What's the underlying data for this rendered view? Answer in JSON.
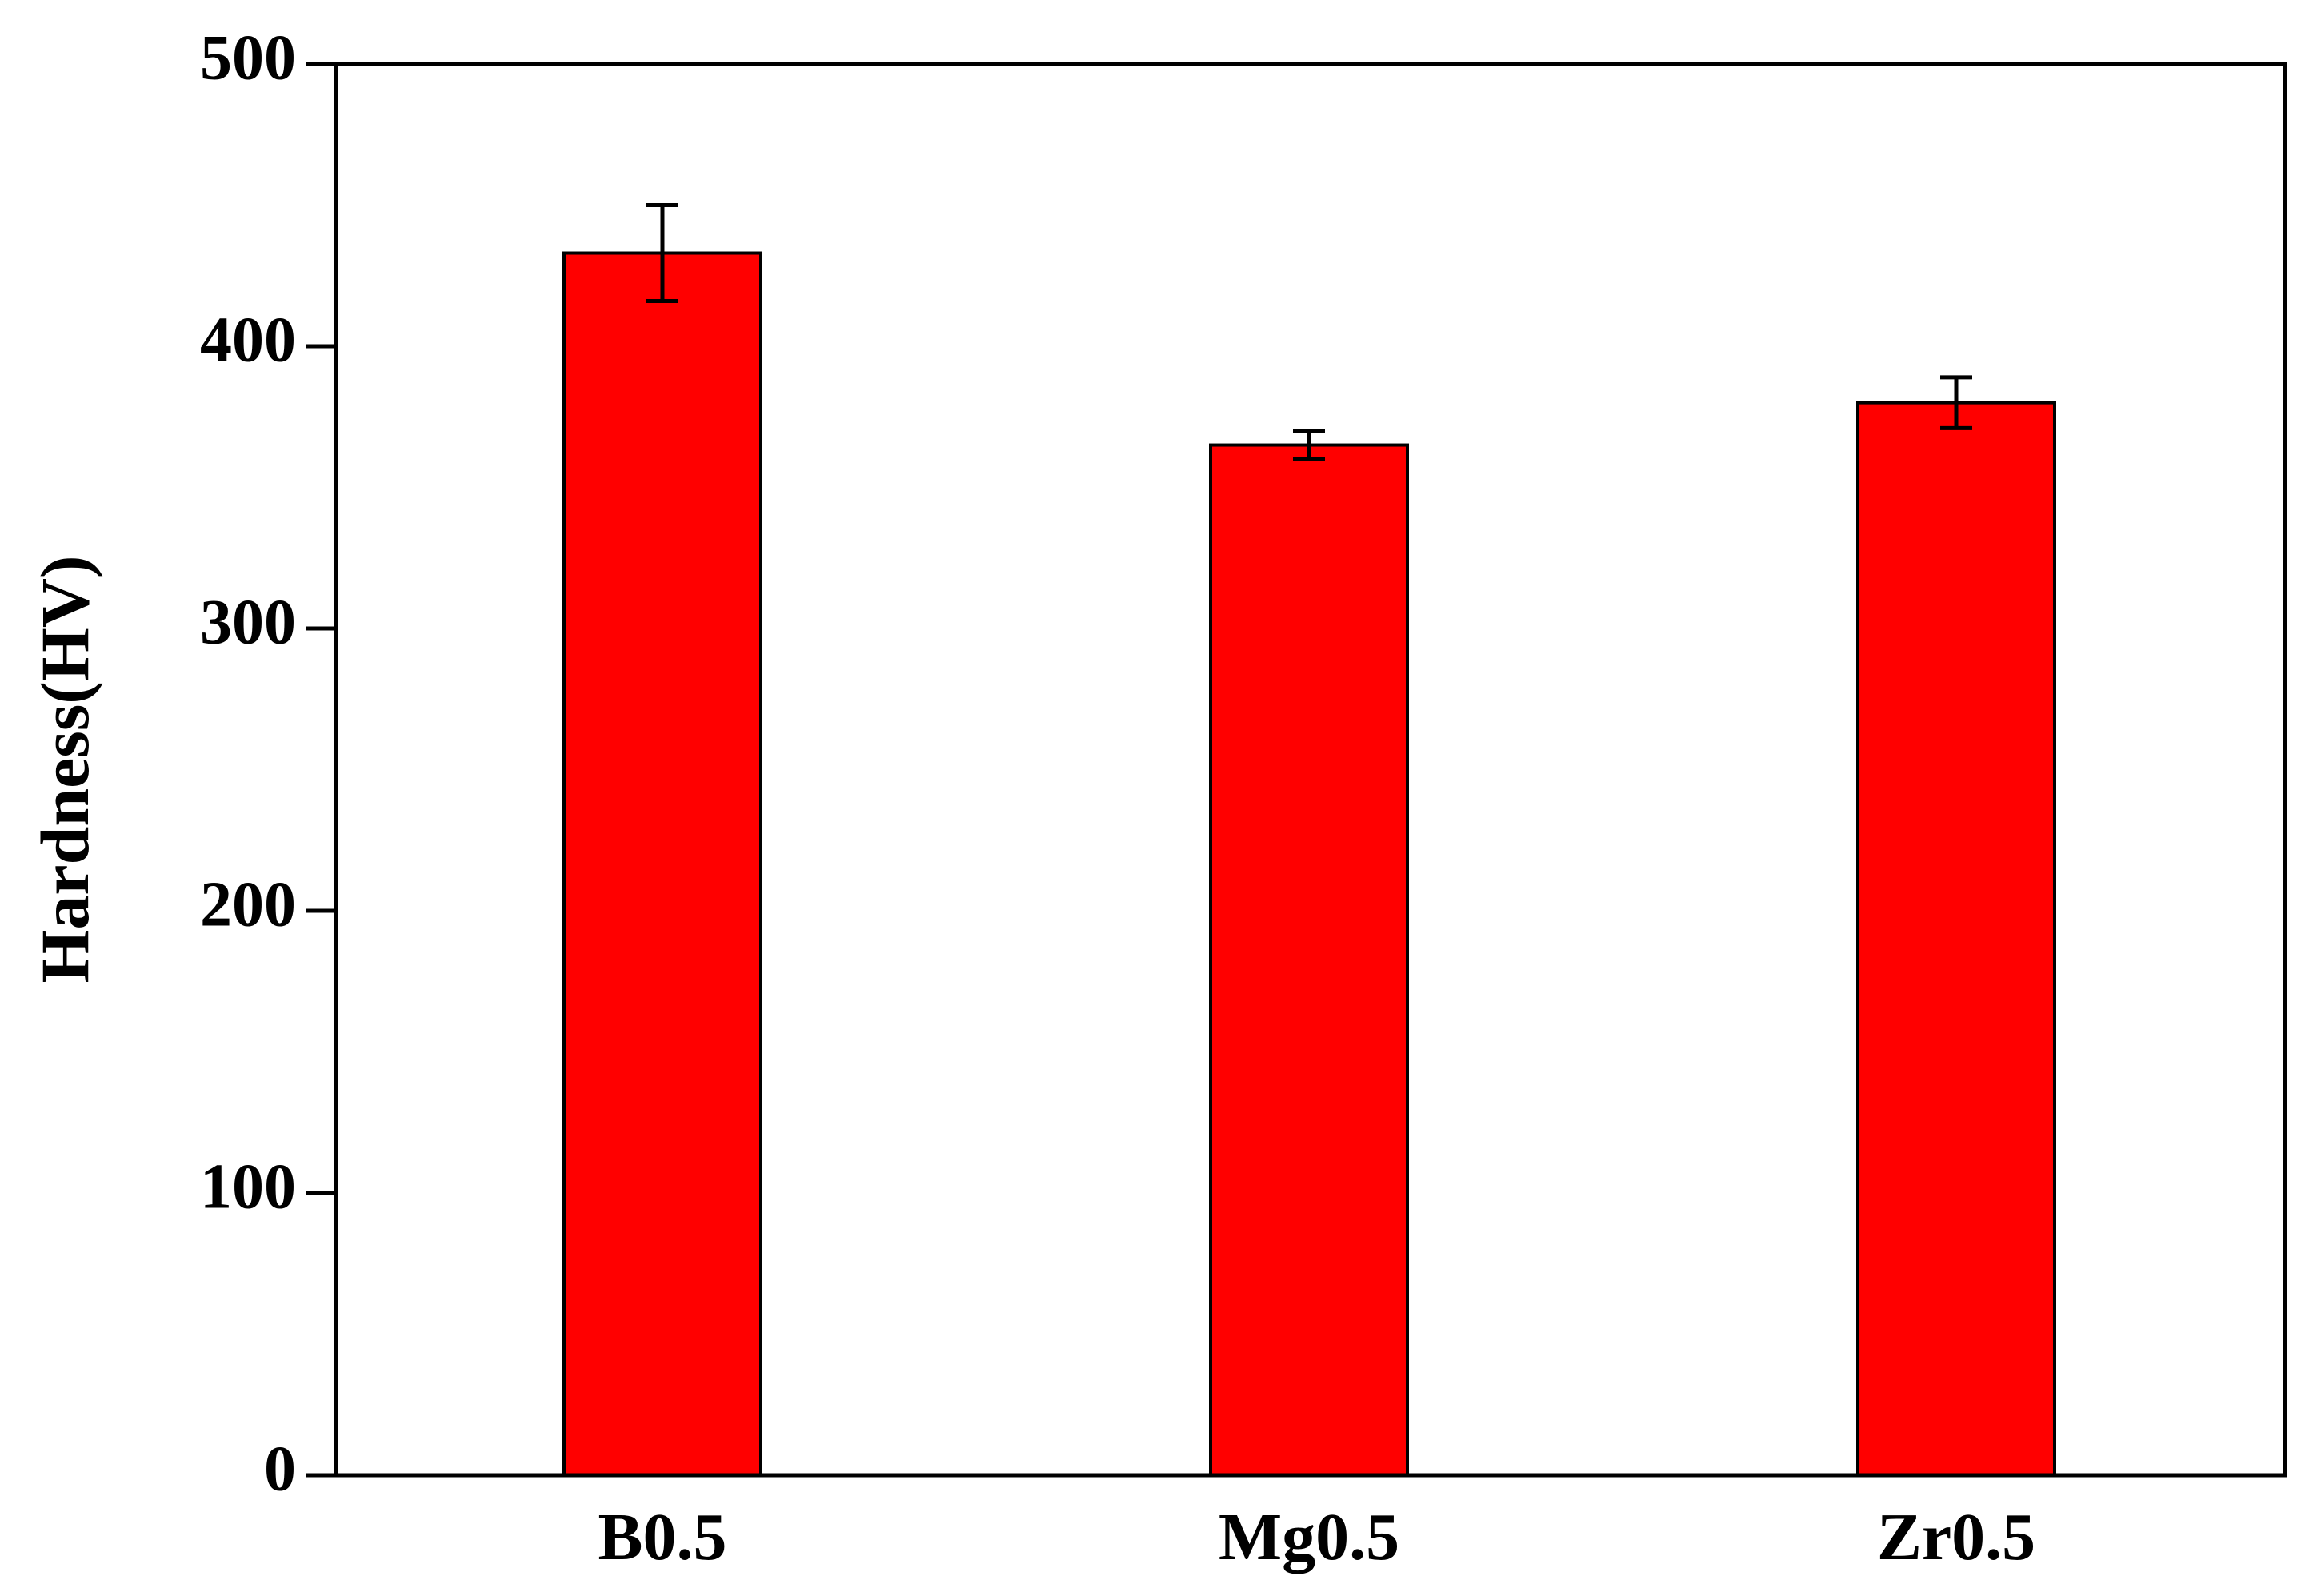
{
  "chart_data": {
    "type": "bar",
    "title": "",
    "xlabel": "",
    "ylabel": "Hardness(HV)",
    "categories": [
      "B0.5",
      "Mg0.5",
      "Zr0.5"
    ],
    "values": [
      433,
      365,
      380
    ],
    "error": [
      17,
      5,
      9
    ],
    "ylim": [
      0,
      500
    ],
    "yticks": [
      0,
      100,
      200,
      300,
      400,
      500
    ],
    "ytick_labels": [
      "0",
      "100",
      "200",
      "300",
      "400",
      "500"
    ],
    "grid": false,
    "legend": "none",
    "bar_color": "#ff0000",
    "edge_color": "#000000"
  }
}
